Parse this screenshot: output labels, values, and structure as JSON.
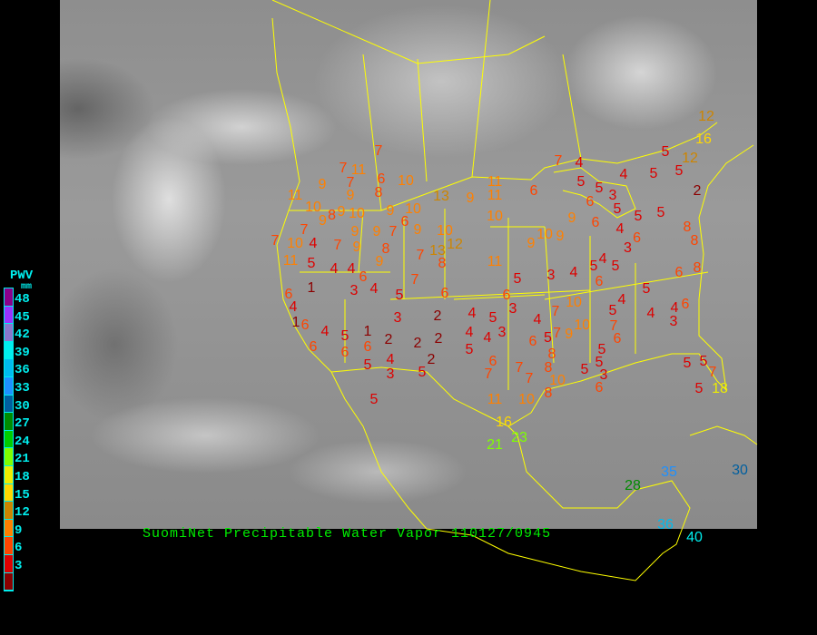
{
  "title": "SuomiNet Precipitable Water Vapor  110127/0945",
  "legend": {
    "title": "PWV",
    "unit": "mm",
    "ticks": [
      "48",
      "45",
      "42",
      "39",
      "36",
      "33",
      "30",
      "27",
      "24",
      "21",
      "18",
      "15",
      "12",
      "9",
      "6",
      "3"
    ],
    "colors": [
      "#8b008b",
      "#9933ff",
      "#8877cc",
      "#00eeee",
      "#00bbee",
      "#1e90ff",
      "#005f9f",
      "#008b00",
      "#00cd00",
      "#7fff00",
      "#eeee00",
      "#ffd700",
      "#cd8500",
      "#ff8000",
      "#ff4500",
      "#dd0000",
      "#8b0000"
    ]
  },
  "border_color": "#ffff00",
  "stations": [
    "12",
    "16",
    "12",
    "5",
    "5",
    "5",
    "7",
    "4",
    "4",
    "5",
    "5",
    "3",
    "6",
    "2",
    "6",
    "5",
    "5",
    "5",
    "9",
    "6",
    "4",
    "6",
    "3",
    "8",
    "8",
    "9",
    "10",
    "9",
    "3",
    "4",
    "5",
    "4",
    "6",
    "5",
    "6",
    "8",
    "6",
    "5",
    "4",
    "5",
    "7",
    "10",
    "4",
    "4",
    "3",
    "11",
    "11",
    "10",
    "13",
    "9",
    "12",
    "10",
    "13",
    "8",
    "11",
    "5",
    "6",
    "7",
    "6",
    "3",
    "4",
    "5",
    "4",
    "7",
    "10",
    "9",
    "4",
    "4",
    "3",
    "5",
    "6",
    "5",
    "8",
    "5",
    "6",
    "7",
    "6",
    "7",
    "7",
    "7",
    "8",
    "10",
    "8",
    "5",
    "5",
    "3",
    "6",
    "11",
    "10",
    "16",
    "21",
    "23",
    "7",
    "7",
    "11",
    "6",
    "10",
    "9",
    "7",
    "9",
    "8",
    "11",
    "10",
    "9",
    "9",
    "10",
    "8",
    "9",
    "10",
    "6",
    "9",
    "9",
    "7",
    "9",
    "7",
    "10",
    "4",
    "7",
    "9",
    "8",
    "7",
    "7",
    "11",
    "5",
    "4",
    "4",
    "6",
    "9",
    "1",
    "3",
    "4",
    "5",
    "6",
    "4",
    "1",
    "6",
    "4",
    "5",
    "1",
    "6",
    "6",
    "6",
    "2",
    "3",
    "2",
    "2",
    "2",
    "4",
    "5",
    "3",
    "2",
    "5",
    "5",
    "5",
    "7",
    "5",
    "18",
    "5",
    "28",
    "35",
    "30",
    "36",
    "40"
  ]
}
